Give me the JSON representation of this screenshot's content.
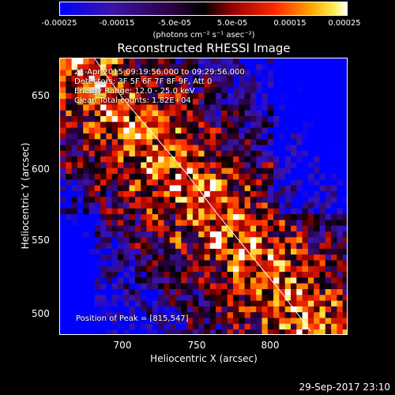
{
  "colorbar": {
    "ticks": [
      "-0.00025",
      "-0.00015",
      "-5.0e-05",
      "5.0e-05",
      "0.00015",
      "0.00025"
    ],
    "unit": "(photons cm⁻² s⁻¹ asec⁻²)",
    "range": [
      -0.00025,
      0.00025
    ]
  },
  "title": "Reconstructed RHESSI Image",
  "annotations": {
    "time": "21-Apr-2015 09:19:56.000 to 09:29:56.000",
    "detectors": "Detectors: 3F 5F 6F 7F 8F 9F, Att 0",
    "energy": "Energy Range: 12.0 - 25.0 keV",
    "clean": "Clean      Total counts: 1.82E+04",
    "peak": "Position of Peak = [815,547]"
  },
  "chart_data": {
    "type": "heatmap",
    "title": "Reconstructed RHESSI Image",
    "xlabel": "Heliocentric X (arcsec)",
    "ylabel": "Heliocentric Y (arcsec)",
    "xlim": [
      660,
      843
    ],
    "ylim": [
      490,
      677
    ],
    "xticks": [
      "700",
      "750",
      "800"
    ],
    "yticks": [
      "500",
      "550",
      "600",
      "650"
    ],
    "limb": [
      [
        682,
        677
      ],
      [
        700,
        650
      ],
      [
        720,
        625
      ],
      [
        740,
        600
      ],
      [
        760,
        572
      ],
      [
        780,
        546
      ],
      [
        800,
        520
      ],
      [
        820,
        492
      ]
    ],
    "peak": [
      815,
      547
    ]
  },
  "footer": {
    "timestamp": "29-Sep-2017 23:10"
  }
}
